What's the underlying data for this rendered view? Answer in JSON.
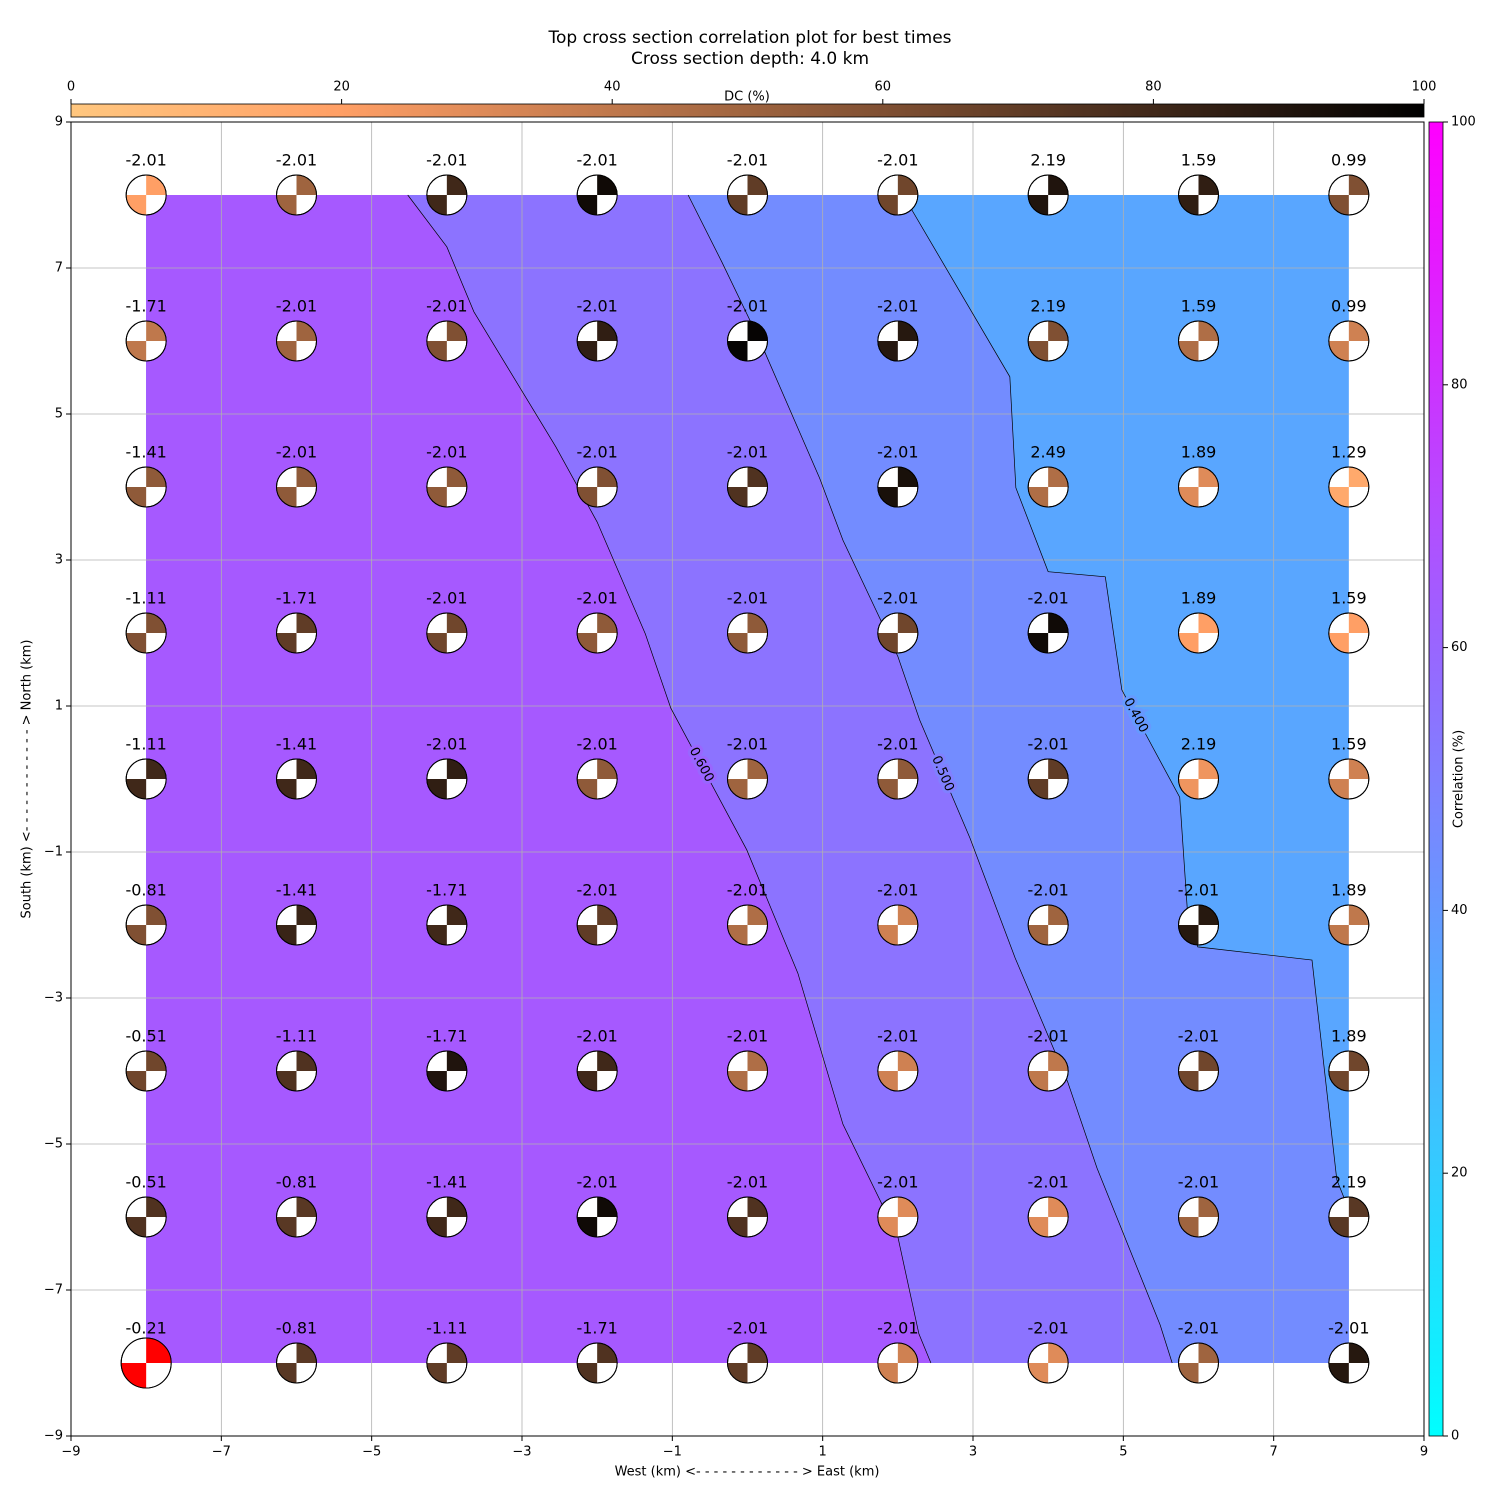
{
  "chart_data": {
    "type": "focal-grid",
    "title": "Top cross section correlation plot for best times",
    "subtitle": "Cross section depth: 4.0 km",
    "xlabel": "West (km) <- - - - - - - - - - - - > East (km)",
    "ylabel": "South (km) <- - - - - - - - - - - - > North (km)",
    "xlim": [
      -9,
      9
    ],
    "ylim": [
      -9,
      9
    ],
    "xticks": [
      {
        "value": -9,
        "label": "−9"
      },
      {
        "value": -7,
        "label": "−7"
      },
      {
        "value": -5,
        "label": "−5"
      },
      {
        "value": -3,
        "label": "−3"
      },
      {
        "value": -1,
        "label": "−1"
      },
      1,
      3,
      5,
      7,
      9
    ],
    "yticks": [
      {
        "value": -9,
        "label": "−9"
      },
      {
        "value": -7,
        "label": "−7"
      },
      {
        "value": -5,
        "label": "−5"
      },
      {
        "value": -3,
        "label": "−3"
      },
      {
        "value": -1,
        "label": "−1"
      },
      1,
      3,
      5,
      7,
      9
    ],
    "grid": true,
    "x": [
      -8,
      -6,
      -4,
      -2,
      0,
      2,
      4,
      6,
      8
    ],
    "y": [
      8,
      6,
      4,
      2,
      0,
      -2,
      -4,
      -6,
      -8
    ],
    "labels": [
      [
        -2.01,
        -2.01,
        -2.01,
        -2.01,
        -2.01,
        -2.01,
        2.19,
        1.59,
        0.99
      ],
      [
        -1.71,
        -2.01,
        -2.01,
        -2.01,
        -2.01,
        -2.01,
        2.19,
        1.59,
        0.99
      ],
      [
        -1.41,
        -2.01,
        -2.01,
        -2.01,
        -2.01,
        -2.01,
        2.49,
        1.89,
        1.29
      ],
      [
        -1.11,
        -1.71,
        -2.01,
        -2.01,
        -2.01,
        -2.01,
        -2.01,
        1.89,
        1.59
      ],
      [
        -1.11,
        -1.41,
        -2.01,
        -2.01,
        -2.01,
        -2.01,
        -2.01,
        2.19,
        1.59
      ],
      [
        -0.81,
        -1.41,
        -1.71,
        -2.01,
        -2.01,
        -2.01,
        -2.01,
        -2.01,
        1.89
      ],
      [
        -0.51,
        -1.11,
        -1.71,
        -2.01,
        -2.01,
        -2.01,
        -2.01,
        -2.01,
        1.89
      ],
      [
        -0.51,
        -0.81,
        -1.41,
        -2.01,
        -2.01,
        -2.01,
        -2.01,
        -2.01,
        2.19
      ],
      [
        -0.21,
        -0.81,
        -1.11,
        -1.71,
        -2.01,
        -2.01,
        -2.01,
        -2.01,
        -2.01
      ]
    ],
    "dc": [
      [
        20,
        50,
        80,
        95,
        70,
        65,
        90,
        85,
        60
      ],
      [
        40,
        50,
        60,
        85,
        98,
        88,
        60,
        45,
        35
      ],
      [
        55,
        55,
        55,
        60,
        75,
        92,
        45,
        30,
        15
      ],
      [
        60,
        70,
        65,
        55,
        55,
        65,
        95,
        20,
        20
      ],
      [
        80,
        80,
        85,
        55,
        50,
        55,
        70,
        25,
        35
      ],
      [
        60,
        82,
        80,
        70,
        45,
        35,
        50,
        88,
        40
      ],
      [
        65,
        75,
        90,
        80,
        45,
        35,
        40,
        65,
        65
      ],
      [
        75,
        72,
        80,
        95,
        75,
        30,
        30,
        50,
        72
      ],
      [
        50,
        72,
        70,
        75,
        70,
        35,
        30,
        50,
        88
      ]
    ],
    "best": {
      "row": 8,
      "col": 0,
      "color": "#ff0000"
    },
    "extent": [
      -8,
      8,
      -8,
      8
    ],
    "contours": [
      {
        "level": 0.4,
        "label": "0.400",
        "x": [
          2.07,
          3.49,
          3.57,
          4.0,
          4.76,
          4.98,
          5.75,
          5.85,
          5.99,
          7.51,
          7.84,
          8.0
        ],
        "y": [
          8,
          5.51,
          3.99,
          2.84,
          2.77,
          1.22,
          -0.25,
          -1.77,
          -2.3,
          -2.48,
          -5.49,
          -5.9
        ]
      },
      {
        "level": 0.5,
        "label": "0.500",
        "x": [
          -0.79,
          -0.34,
          0.17,
          0.96,
          1.27,
          2.0,
          2.29,
          2.96,
          3.56,
          4.26,
          4.65,
          5.49,
          5.65
        ],
        "y": [
          8,
          7.08,
          5.99,
          4.12,
          3.27,
          1.68,
          0.81,
          -0.81,
          -2.45,
          -4.15,
          -5.33,
          -7.48,
          -8
        ]
      },
      {
        "level": 0.6,
        "label": "0.600",
        "x": [
          -4.52,
          -4.0,
          -3.64,
          -2.55,
          -2.0,
          -1.36,
          -1.02,
          -0.01,
          0.67,
          1.27,
          2.0,
          2.28,
          2.44
        ],
        "y": [
          8,
          7.29,
          6.4,
          4.55,
          3.52,
          1.99,
          0.97,
          -0.97,
          -2.66,
          -4.73,
          -6.27,
          -7.6,
          -8
        ]
      }
    ],
    "dc_colorbar": {
      "label": "DC (%)",
      "lim": [
        0,
        100
      ],
      "ticks": [
        0,
        20,
        40,
        60,
        80,
        100
      ]
    },
    "corr_colorbar": {
      "label": "Correlation (%)",
      "lim": [
        0,
        100
      ],
      "ticks": [
        0,
        20,
        40,
        60,
        80,
        100
      ]
    }
  }
}
